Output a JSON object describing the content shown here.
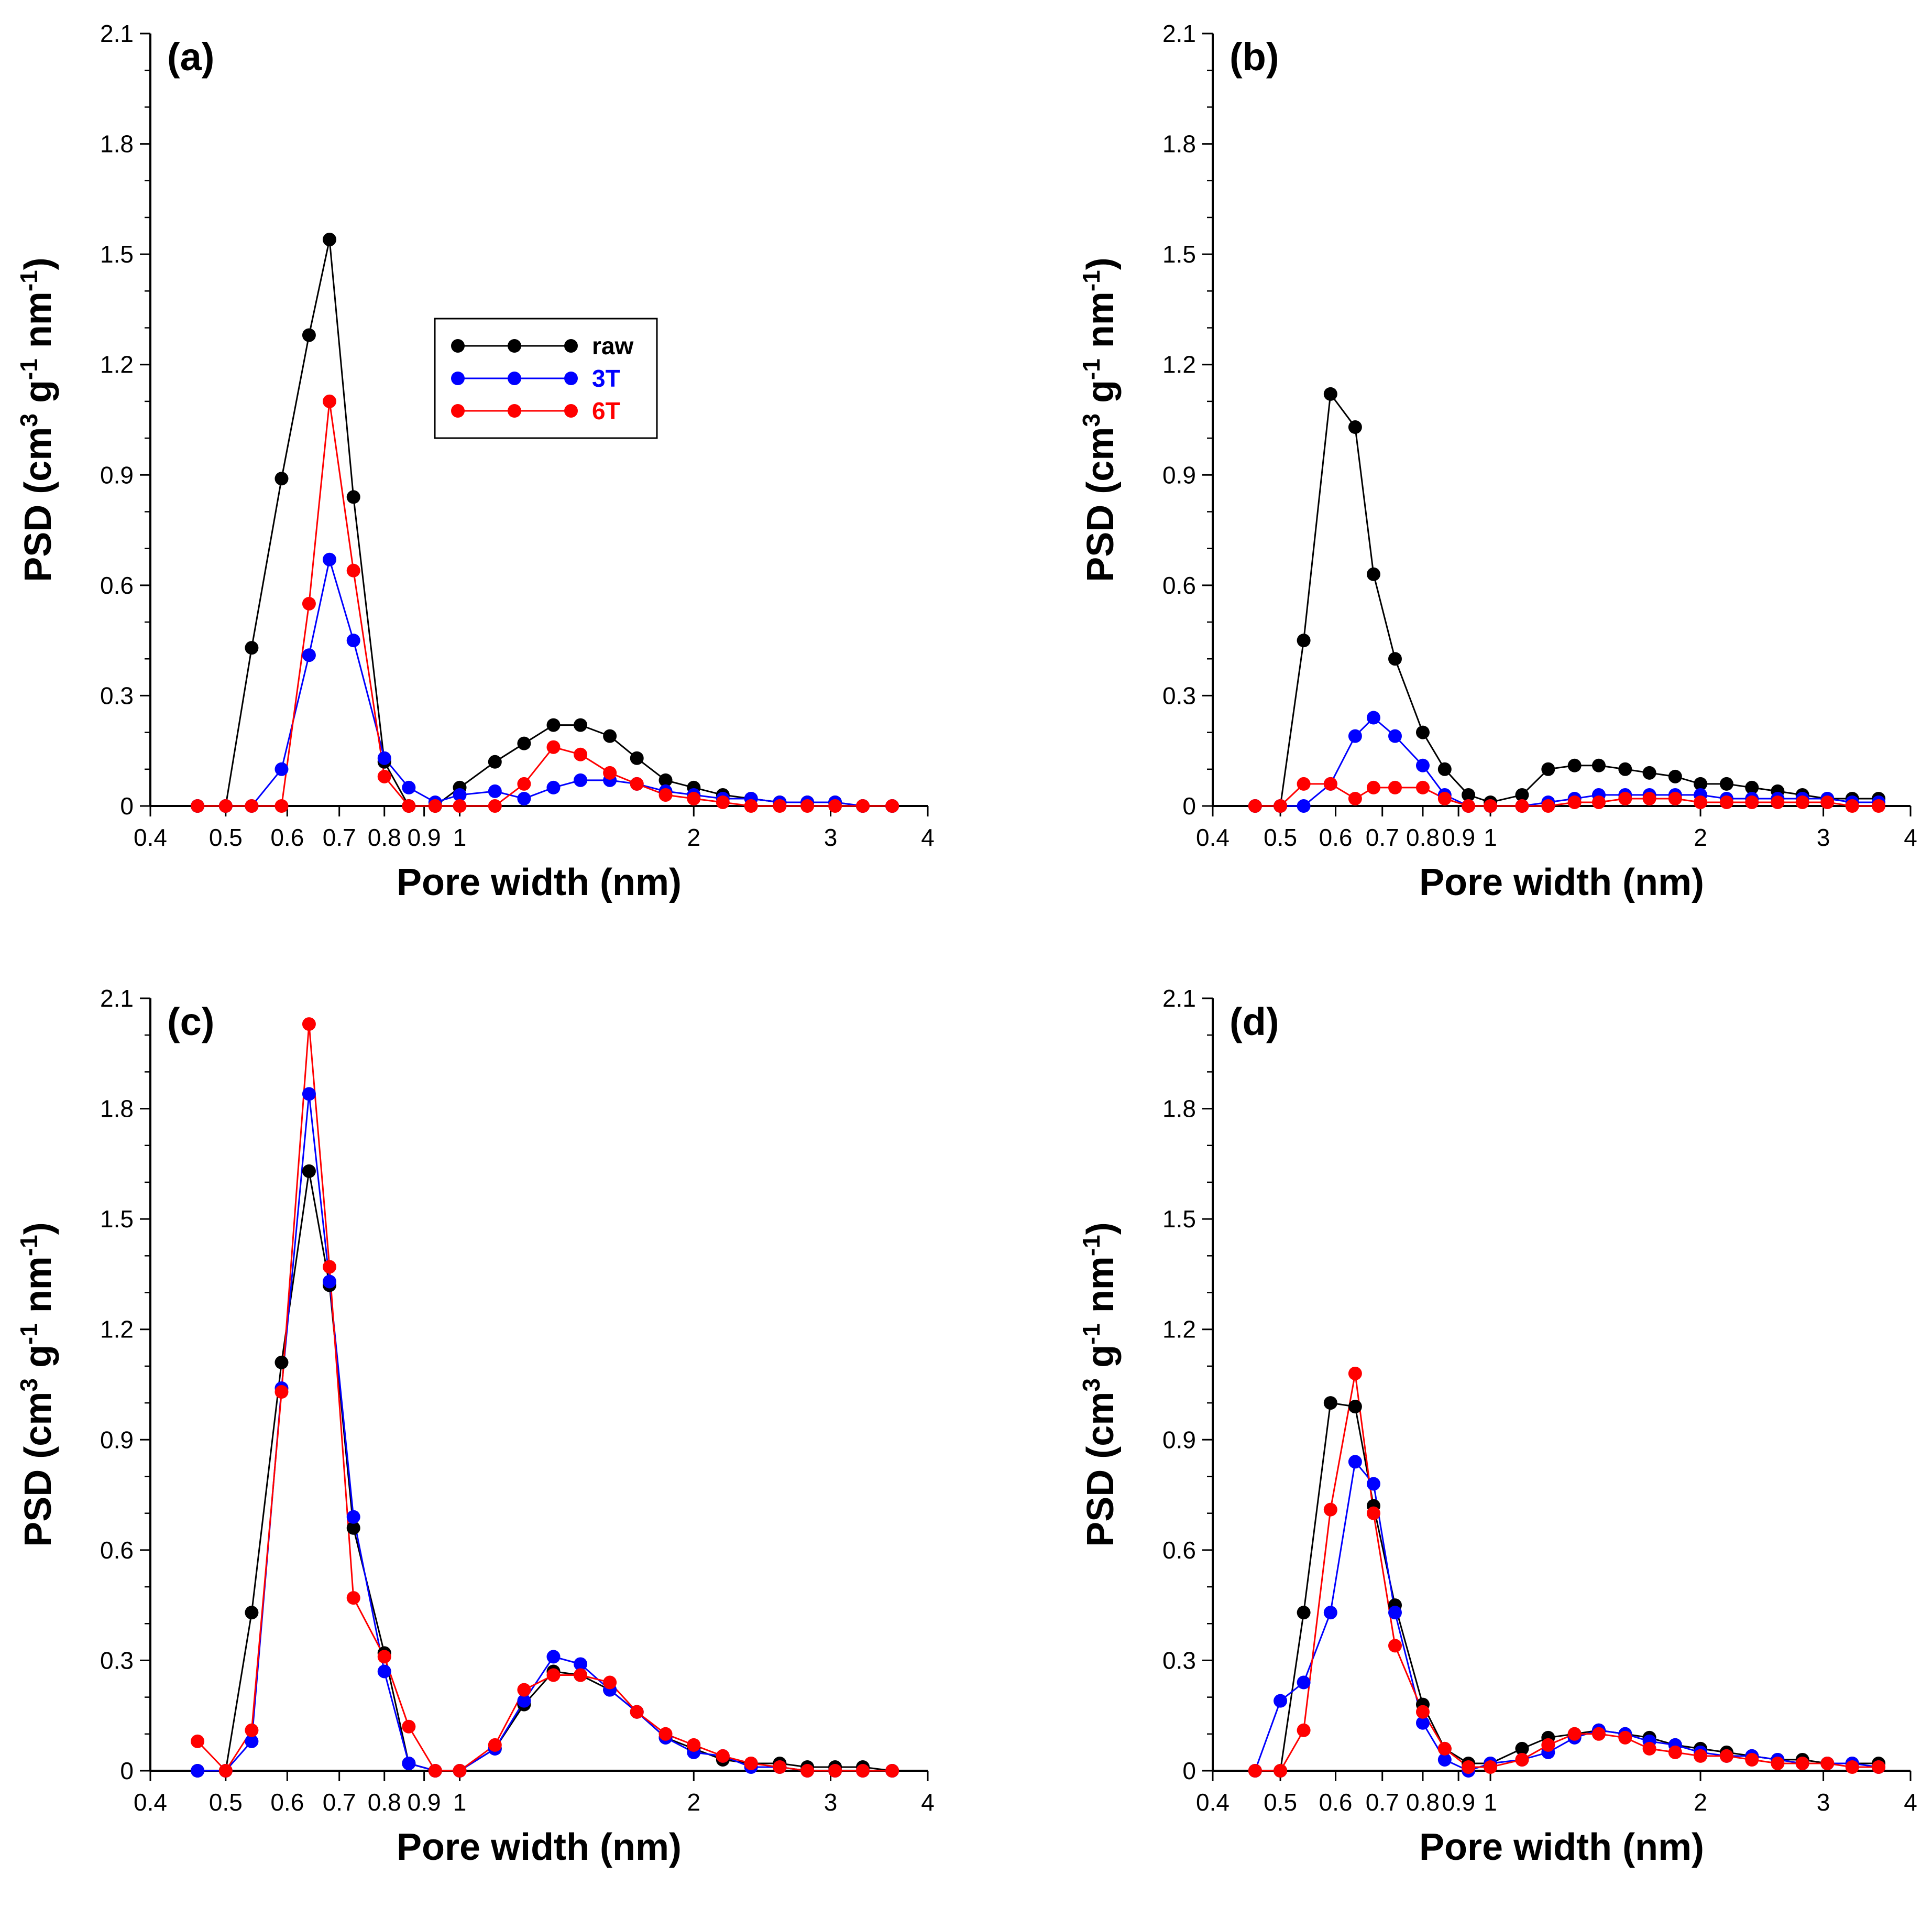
{
  "figure": {
    "ylabel": "PSD (cm3 g-1 nm-1)",
    "xlabel": "Pore width (nm)"
  },
  "colors": {
    "raw": "#000000",
    "3T": "#0000ff",
    "6T": "#ff0000"
  },
  "chart_data": [
    {
      "type": "line",
      "panel": "(a)",
      "title": "(a)",
      "xlabel": "Pore width (nm)",
      "ylabel": "PSD (cm3 g-1 nm-1)",
      "xscale": "log",
      "xlim": [
        0.4,
        4
      ],
      "ylim": [
        0,
        2.1
      ],
      "yticks": [
        "0",
        "0.3",
        "0.6",
        "0.9",
        "1.2",
        "1.5",
        "1.8",
        "2.1"
      ],
      "xticks": [
        "0.4",
        "0.5",
        "0.6",
        "0.7",
        "0.8",
        "0.9",
        "1",
        "2",
        "3",
        "4"
      ],
      "legend": {
        "position": "upper-middle",
        "entries": [
          "raw",
          "3T",
          "6T"
        ]
      },
      "series": [
        {
          "name": "raw",
          "color": "#000000",
          "x": [
            0.46,
            0.5,
            0.54,
            0.59,
            0.64,
            0.68,
            0.73,
            0.8,
            0.86,
            0.93,
            1.0,
            1.11,
            1.21,
            1.32,
            1.43,
            1.56,
            1.69,
            1.84,
            2.0,
            2.18,
            2.37,
            2.58,
            2.8,
            3.04,
            3.3,
            3.6
          ],
          "y": [
            0,
            0,
            0.43,
            0.89,
            1.28,
            1.54,
            0.84,
            0.12,
            0,
            0,
            0.05,
            0.12,
            0.17,
            0.22,
            0.22,
            0.19,
            0.13,
            0.07,
            0.05,
            0.03,
            0.02,
            0.01,
            0.01,
            0.01,
            0,
            0
          ]
        },
        {
          "name": "3T",
          "color": "#0000ff",
          "x": [
            0.46,
            0.5,
            0.54,
            0.59,
            0.64,
            0.68,
            0.73,
            0.8,
            0.86,
            0.93,
            1.0,
            1.11,
            1.21,
            1.32,
            1.43,
            1.56,
            1.69,
            1.84,
            2.0,
            2.18,
            2.37,
            2.58,
            2.8,
            3.04,
            3.3,
            3.6
          ],
          "y": [
            0,
            0,
            0,
            0.1,
            0.41,
            0.67,
            0.45,
            0.13,
            0.05,
            0.01,
            0.03,
            0.04,
            0.02,
            0.05,
            0.07,
            0.07,
            0.06,
            0.04,
            0.03,
            0.02,
            0.02,
            0.01,
            0.01,
            0.01,
            0,
            0
          ]
        },
        {
          "name": "6T",
          "color": "#ff0000",
          "x": [
            0.46,
            0.5,
            0.54,
            0.59,
            0.64,
            0.68,
            0.73,
            0.8,
            0.86,
            0.93,
            1.0,
            1.11,
            1.21,
            1.32,
            1.43,
            1.56,
            1.69,
            1.84,
            2.0,
            2.18,
            2.37,
            2.58,
            2.8,
            3.04,
            3.3,
            3.6
          ],
          "y": [
            0,
            0,
            0,
            0,
            0.55,
            1.1,
            0.64,
            0.08,
            0,
            0,
            0,
            0,
            0.06,
            0.16,
            0.14,
            0.09,
            0.06,
            0.03,
            0.02,
            0.01,
            0,
            0,
            0,
            0,
            0,
            0
          ]
        }
      ]
    },
    {
      "type": "line",
      "panel": "(b)",
      "title": "(b)",
      "xlabel": "Pore width (nm)",
      "ylabel": "PSD (cm3 g-1 nm-1)",
      "xscale": "log",
      "xlim": [
        0.4,
        4
      ],
      "ylim": [
        0,
        2.1
      ],
      "yticks": [
        "0",
        "0.3",
        "0.6",
        "0.9",
        "1.2",
        "1.5",
        "1.8",
        "2.1"
      ],
      "xticks": [
        "0.4",
        "0.5",
        "0.6",
        "0.7",
        "0.8",
        "0.9",
        "1",
        "2",
        "3",
        "4"
      ],
      "series": [
        {
          "name": "raw",
          "color": "#000000",
          "x": [
            0.46,
            0.5,
            0.54,
            0.59,
            0.64,
            0.68,
            0.73,
            0.8,
            0.86,
            0.93,
            1.0,
            1.11,
            1.21,
            1.32,
            1.43,
            1.56,
            1.69,
            1.84,
            2.0,
            2.18,
            2.37,
            2.58,
            2.8,
            3.04,
            3.3,
            3.6
          ],
          "y": [
            0,
            0,
            0.45,
            1.12,
            1.03,
            0.63,
            0.4,
            0.2,
            0.1,
            0.03,
            0.01,
            0.03,
            0.1,
            0.11,
            0.11,
            0.1,
            0.09,
            0.08,
            0.06,
            0.06,
            0.05,
            0.04,
            0.03,
            0.02,
            0.02,
            0.02
          ]
        },
        {
          "name": "3T",
          "color": "#0000ff",
          "x": [
            0.46,
            0.5,
            0.54,
            0.59,
            0.64,
            0.68,
            0.73,
            0.8,
            0.86,
            0.93,
            1.0,
            1.11,
            1.21,
            1.32,
            1.43,
            1.56,
            1.69,
            1.84,
            2.0,
            2.18,
            2.37,
            2.58,
            2.8,
            3.04,
            3.3,
            3.6
          ],
          "y": [
            0,
            0,
            0,
            0.06,
            0.19,
            0.24,
            0.19,
            0.11,
            0.03,
            0,
            0,
            0,
            0.01,
            0.02,
            0.03,
            0.03,
            0.03,
            0.03,
            0.03,
            0.02,
            0.02,
            0.02,
            0.02,
            0.02,
            0.01,
            0.01
          ]
        },
        {
          "name": "6T",
          "color": "#ff0000",
          "x": [
            0.46,
            0.5,
            0.54,
            0.59,
            0.64,
            0.68,
            0.73,
            0.8,
            0.86,
            0.93,
            1.0,
            1.11,
            1.21,
            1.32,
            1.43,
            1.56,
            1.69,
            1.84,
            2.0,
            2.18,
            2.37,
            2.58,
            2.8,
            3.04,
            3.3,
            3.6
          ],
          "y": [
            0,
            0,
            0.06,
            0.06,
            0.02,
            0.05,
            0.05,
            0.05,
            0.02,
            0,
            0,
            0,
            0,
            0.01,
            0.01,
            0.02,
            0.02,
            0.02,
            0.01,
            0.01,
            0.01,
            0.01,
            0.01,
            0.01,
            0,
            0
          ]
        }
      ]
    },
    {
      "type": "line",
      "panel": "(c)",
      "title": "(c)",
      "xlabel": "Pore width (nm)",
      "ylabel": "PSD (cm3 g-1 nm-1)",
      "xscale": "log",
      "xlim": [
        0.4,
        4
      ],
      "ylim": [
        0,
        2.1
      ],
      "yticks": [
        "0",
        "0.3",
        "0.6",
        "0.9",
        "1.2",
        "1.5",
        "1.8",
        "2.1"
      ],
      "xticks": [
        "0.4",
        "0.5",
        "0.6",
        "0.7",
        "0.8",
        "0.9",
        "1",
        "2",
        "3",
        "4"
      ],
      "series": [
        {
          "name": "raw",
          "color": "#000000",
          "x": [
            0.46,
            0.5,
            0.54,
            0.59,
            0.64,
            0.68,
            0.73,
            0.8,
            0.86,
            0.93,
            1.0,
            1.11,
            1.21,
            1.32,
            1.43,
            1.56,
            1.69,
            1.84,
            2.0,
            2.18,
            2.37,
            2.58,
            2.8,
            3.04,
            3.3,
            3.6
          ],
          "y": [
            0,
            0,
            0.43,
            1.11,
            1.63,
            1.32,
            0.66,
            0.32,
            0.02,
            0,
            0,
            0.06,
            0.18,
            0.27,
            0.26,
            0.22,
            0.16,
            0.09,
            0.06,
            0.03,
            0.02,
            0.02,
            0.01,
            0.01,
            0.01,
            0
          ]
        },
        {
          "name": "3T",
          "color": "#0000ff",
          "x": [
            0.46,
            0.5,
            0.54,
            0.59,
            0.64,
            0.68,
            0.73,
            0.8,
            0.86,
            0.93,
            1.0,
            1.11,
            1.21,
            1.32,
            1.43,
            1.56,
            1.69,
            1.84,
            2.0,
            2.18,
            2.37,
            2.58,
            2.8,
            3.04,
            3.3,
            3.6
          ],
          "y": [
            0,
            0,
            0.08,
            1.04,
            1.84,
            1.33,
            0.69,
            0.27,
            0.02,
            0,
            0,
            0.06,
            0.19,
            0.31,
            0.29,
            0.22,
            0.16,
            0.09,
            0.05,
            0.04,
            0.01,
            0.01,
            0,
            0,
            0,
            0
          ]
        },
        {
          "name": "6T",
          "color": "#ff0000",
          "x": [
            0.46,
            0.5,
            0.54,
            0.59,
            0.64,
            0.68,
            0.73,
            0.8,
            0.86,
            0.93,
            1.0,
            1.11,
            1.21,
            1.32,
            1.43,
            1.56,
            1.69,
            1.84,
            2.0,
            2.18,
            2.37,
            2.58,
            2.8,
            3.04,
            3.3,
            3.6
          ],
          "y": [
            0.08,
            0,
            0.11,
            1.03,
            2.03,
            1.37,
            0.47,
            0.31,
            0.12,
            0,
            0,
            0.07,
            0.22,
            0.26,
            0.26,
            0.24,
            0.16,
            0.1,
            0.07,
            0.04,
            0.02,
            0.01,
            0,
            0,
            0,
            0
          ]
        }
      ]
    },
    {
      "type": "line",
      "panel": "(d)",
      "title": "(d)",
      "xlabel": "Pore width (nm)",
      "ylabel": "PSD (cm3 g-1 nm-1)",
      "xscale": "log",
      "xlim": [
        0.4,
        4
      ],
      "ylim": [
        0,
        2.1
      ],
      "yticks": [
        "0",
        "0.3",
        "0.6",
        "0.9",
        "1.2",
        "1.5",
        "1.8",
        "2.1"
      ],
      "xticks": [
        "0.4",
        "0.5",
        "0.6",
        "0.7",
        "0.8",
        "0.9",
        "1",
        "2",
        "3",
        "4"
      ],
      "series": [
        {
          "name": "raw",
          "color": "#000000",
          "x": [
            0.46,
            0.5,
            0.54,
            0.59,
            0.64,
            0.68,
            0.73,
            0.8,
            0.86,
            0.93,
            1.0,
            1.11,
            1.21,
            1.32,
            1.43,
            1.56,
            1.69,
            1.84,
            2.0,
            2.18,
            2.37,
            2.58,
            2.8,
            3.04,
            3.3,
            3.6
          ],
          "y": [
            0,
            0,
            0.43,
            1.0,
            0.99,
            0.72,
            0.45,
            0.18,
            0.06,
            0.02,
            0.02,
            0.06,
            0.09,
            0.1,
            0.11,
            0.1,
            0.09,
            0.07,
            0.06,
            0.05,
            0.04,
            0.03,
            0.03,
            0.02,
            0.02,
            0.02
          ]
        },
        {
          "name": "3T",
          "color": "#0000ff",
          "x": [
            0.46,
            0.5,
            0.54,
            0.59,
            0.64,
            0.68,
            0.73,
            0.8,
            0.86,
            0.93,
            1.0,
            1.11,
            1.21,
            1.32,
            1.43,
            1.56,
            1.69,
            1.84,
            2.0,
            2.18,
            2.37,
            2.58,
            2.8,
            3.04,
            3.3,
            3.6
          ],
          "y": [
            0,
            0.19,
            0.24,
            0.43,
            0.84,
            0.78,
            0.43,
            0.13,
            0.03,
            0,
            0.02,
            0.03,
            0.05,
            0.09,
            0.11,
            0.1,
            0.08,
            0.07,
            0.05,
            0.04,
            0.04,
            0.03,
            0.02,
            0.02,
            0.02,
            0.01
          ]
        },
        {
          "name": "6T",
          "color": "#ff0000",
          "x": [
            0.46,
            0.5,
            0.54,
            0.59,
            0.64,
            0.68,
            0.73,
            0.8,
            0.86,
            0.93,
            1.0,
            1.11,
            1.21,
            1.32,
            1.43,
            1.56,
            1.69,
            1.84,
            2.0,
            2.18,
            2.37,
            2.58,
            2.8,
            3.04,
            3.3,
            3.6
          ],
          "y": [
            0,
            0,
            0.11,
            0.71,
            1.08,
            0.7,
            0.34,
            0.16,
            0.06,
            0.01,
            0.01,
            0.03,
            0.07,
            0.1,
            0.1,
            0.09,
            0.06,
            0.05,
            0.04,
            0.04,
            0.03,
            0.02,
            0.02,
            0.02,
            0.01,
            0.01
          ]
        }
      ]
    }
  ]
}
